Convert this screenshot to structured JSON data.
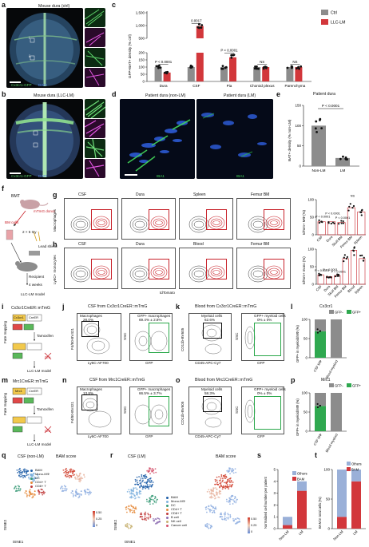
{
  "panels": {
    "a": {
      "letter": "a",
      "title": "Mouse dura (ctrl)",
      "stain_gfp": "Cx3cr1-GFP",
      "stain_dapi": "DAPI",
      "zoom_labels": [
        "i",
        "ii"
      ]
    },
    "b": {
      "letter": "b",
      "title": "Mouse dura (LLC-LM)",
      "stain_gfp": "Cx3cr1-GFP",
      "stain_dapi": "DAPI",
      "zoom_labels": [
        "i",
        "ii"
      ]
    },
    "c": {
      "letter": "c",
      "ylabel": "GFP+BAT+ density (% ctrl)",
      "legend": [
        "Ctrl",
        "LLC-LM"
      ]
    },
    "d": {
      "letter": "d",
      "title_left": "Patient dura (non-LM)",
      "title_right": "Patient dura (LM)",
      "stain_left": "IBA1",
      "stain_right": "IBA1"
    },
    "e": {
      "letter": "e",
      "title": "Patient dura",
      "ylabel": "BAT+ density (% non-LM)",
      "pval": "P < 0.0001"
    },
    "f": {
      "letter": "f",
      "title": "BMT",
      "donor": "mTmG donor",
      "bm": "BM cells",
      "irradiation": "2 × 5 Gy",
      "shield": "Lead shield",
      "recipient": "Recipient",
      "weeks": "4 weeks",
      "model": "LLC-LM model"
    },
    "g": {
      "letter": "g",
      "row_label": "Macrophages",
      "cols": [
        "CSF",
        "Dura",
        "Spleen",
        "Femur BM"
      ],
      "pcts": [
        "37.0% ± 2.8%",
        "36.7% ± 1.7%",
        "64.8% ± 3.3%",
        "76.7% ± 3.2%"
      ],
      "ylabel": "tdTom+ MΦ (%)",
      "pvals": [
        "P < 0.0001",
        "P < 0.0001",
        "P < 0.0001",
        "NS"
      ]
    },
    "h": {
      "letter": "h",
      "row_label": "Ly6C+ monocytes",
      "cols": [
        "CSF",
        "Dura",
        "Blood",
        "Femur BM"
      ],
      "pcts": [
        "27.1% ± 3.3%",
        "22.0% ± 4.7%",
        "96.7% ± 1.7%",
        "72.6% ± 5.2%"
      ],
      "xaxis": "tdTomato",
      "ylabel": "tdTom+ mono (%)",
      "pvals": [
        "P < 0.0001",
        "P < 0.0001",
        "P < 0.0001"
      ]
    },
    "i": {
      "letter": "i",
      "title": "Cx3cr1CreER::mTmG",
      "side": "Fate mapping",
      "gene": "Cx3cr1",
      "cre": "CreER",
      "tamoxifen": "Tamoxifen",
      "model": "LLC-LM model",
      "cre_short": "Cre"
    },
    "j": {
      "letter": "j",
      "title": "CSF from Cx3cr1CreER::mTmG",
      "gate": "Macrophages",
      "gate_pct": "28.0%",
      "gfp_gate": "GFP+ macrophages",
      "gfp_pct": "69.4% ± 2.8%",
      "xaxis_left": "Ly6C-AF700",
      "yaxis_left": "F4/80-BV421",
      "xaxis_right": "GFP",
      "yaxis_right": "SSC"
    },
    "k": {
      "letter": "k",
      "title": "Blood from Cx3cr1CreER::mTmG",
      "gate": "Myeloid cells",
      "gate_pct": "62.6%",
      "gfp_gate": "GFP+ myeloid cells",
      "gfp_pct": "0% ± 0%",
      "xaxis_left": "CD45-APC-Cy7",
      "yaxis_left": "CD11b-BV605",
      "xaxis_right": "GFP",
      "yaxis_right": "SSC"
    },
    "l": {
      "letter": "l",
      "title": "Cx3cr1",
      "legend": [
        "GFP−",
        "GFP+"
      ],
      "ylabel": "GFP+ in myeloid/MΦ (%)",
      "cats": [
        "CSF MΦ",
        "Blood myeloid"
      ]
    },
    "m": {
      "letter": "m",
      "title": "Mrc1CreER::mTmG",
      "side": "Fate mapping",
      "gene": "Mrc1",
      "cre": "CreER",
      "tamoxifen": "Tamoxifen",
      "model": "LLC-LM model",
      "cre_short": "Cre"
    },
    "n": {
      "letter": "n",
      "title": "CSF from Mrc1CreER::mTmG",
      "gate": "Macrophages",
      "gate_pct": "13.8%",
      "gfp_gate": "GFP+ macrophages",
      "gfp_pct": "66.5% ± 3.7%",
      "xaxis_left": "Ly6C-AF700",
      "yaxis_left": "F4/80-BV421",
      "xaxis_right": "GFP",
      "yaxis_right": "SSC"
    },
    "o": {
      "letter": "o",
      "title": "Blood from Mrc1CreER::mTmG",
      "gate": "Myeloid cells",
      "gate_pct": "58.3%",
      "gfp_gate": "GFP+ myeloid cells",
      "gfp_pct": "0% ± 0%",
      "xaxis_left": "CD45-APC-Cy7",
      "yaxis_left": "CD11b-BV605",
      "xaxis_right": "GFP",
      "yaxis_right": "SSC"
    },
    "p": {
      "letter": "p",
      "title": "Mrc1",
      "legend": [
        "GFP−",
        "GFP+"
      ],
      "ylabel": "GFP+ in myeloid/MΦ (%)",
      "cats": [
        "CSF MΦ",
        "Blood myeloid"
      ]
    },
    "q": {
      "letter": "q",
      "title": "CSF (non-LM)",
      "score": "BAM score",
      "legend": [
        "BAM",
        "Mono-MΦ",
        "DC",
        "CD4+ T",
        "CD8+ T"
      ],
      "xaxis": "tSNE1",
      "yaxis": "tSNE2",
      "scale": [
        "0.50",
        "0.25",
        "0"
      ]
    },
    "r": {
      "letter": "r",
      "title": "CSF (LM)",
      "score": "BAM score",
      "legend": [
        "BAM",
        "Mono-MΦ",
        "DC",
        "CD4+ T",
        "CD8+ T",
        "B cell",
        "NK cell",
        "Cancer cell"
      ],
      "xaxis": "tSNE1",
      "yaxis": "tSNE2",
      "scale": [
        "0.50",
        "0.25",
        "0"
      ]
    },
    "s": {
      "letter": "s",
      "ylabel": "Normalized cell number per patient",
      "legend": [
        "Others",
        "BAM"
      ],
      "cats": [
        "Non-LM",
        "LM"
      ]
    },
    "t": {
      "letter": "t",
      "ylabel": "BAM in total cells (%)",
      "legend": [
        "Others",
        "BAM"
      ],
      "cats": [
        "Non-LM",
        "LM"
      ]
    }
  },
  "chart_data": [
    {
      "id": "c",
      "type": "bar",
      "categories": [
        "Dura",
        "CSF",
        "Pia",
        "Choroid plexus",
        "Parenchyma"
      ],
      "series": [
        {
          "name": "Ctrl",
          "values": [
            100,
            100,
            100,
            100,
            100
          ]
        },
        {
          "name": "LLC-LM",
          "values": [
            62,
            980,
            168,
            100,
            100
          ]
        }
      ],
      "pvals": [
        "P < 0.0001",
        "0.0017",
        "P < 0.0001",
        "NS",
        "NS"
      ],
      "yticks": [
        "0",
        "50",
        "100",
        "150",
        "200",
        "500",
        "1,000",
        "1,500"
      ],
      "ylim_low": [
        0,
        200
      ],
      "ylim_high": [
        500,
        1500
      ],
      "broken_axis": true
    },
    {
      "id": "e",
      "type": "bar",
      "categories": [
        "Non-LM",
        "LM"
      ],
      "values": [
        100,
        20
      ],
      "yticks": [
        "0",
        "50",
        "100",
        "150"
      ],
      "ylim": [
        0,
        150
      ]
    },
    {
      "id": "g",
      "type": "bar",
      "categories": [
        "CSF",
        "Dura",
        "Skull BM",
        "Femur BM",
        "Spleen"
      ],
      "values": [
        37,
        37,
        35,
        77,
        65
      ],
      "yticks": [
        "0",
        "50",
        "100"
      ],
      "ylim": [
        0,
        100
      ]
    },
    {
      "id": "h",
      "type": "bar",
      "categories": [
        "CSF",
        "Dura",
        "Skull BM",
        "Femur BM",
        "Blood",
        "Spleen"
      ],
      "values": [
        27,
        22,
        25,
        73,
        97,
        73
      ],
      "yticks": [
        "0",
        "50",
        "100"
      ],
      "ylim": [
        0,
        100
      ]
    },
    {
      "id": "l",
      "type": "bar",
      "stacked": true,
      "categories": [
        "CSF MΦ",
        "Blood myeloid"
      ],
      "series": [
        {
          "name": "GFP−",
          "values": [
            31,
            100
          ]
        },
        {
          "name": "GFP+",
          "values": [
            69,
            0
          ]
        }
      ],
      "yticks": [
        "0",
        "50",
        "100"
      ],
      "ylim": [
        0,
        100
      ]
    },
    {
      "id": "p",
      "type": "bar",
      "stacked": true,
      "categories": [
        "CSF MΦ",
        "Blood myeloid"
      ],
      "series": [
        {
          "name": "GFP−",
          "values": [
            34,
            100
          ]
        },
        {
          "name": "GFP+",
          "values": [
            66,
            0
          ]
        }
      ],
      "yticks": [
        "0",
        "50",
        "100"
      ],
      "ylim": [
        0,
        100
      ]
    },
    {
      "id": "s",
      "type": "bar",
      "stacked": true,
      "categories": [
        "Non-LM",
        "LM"
      ],
      "series": [
        {
          "name": "BAM",
          "values": [
            0.3,
            3.2
          ]
        },
        {
          "name": "Others",
          "values": [
            0.7,
            0.8
          ]
        }
      ],
      "yticks": [
        "0",
        "1",
        "2",
        "3",
        "4",
        "5"
      ],
      "ylim": [
        0,
        5
      ]
    },
    {
      "id": "t",
      "type": "bar",
      "stacked": true,
      "categories": [
        "Non-LM",
        "LM"
      ],
      "series": [
        {
          "name": "BAM",
          "values": [
            20,
            80
          ]
        },
        {
          "name": "Others",
          "values": [
            80,
            20
          ]
        }
      ],
      "yticks": [
        "0",
        "50",
        "100"
      ],
      "ylim": [
        0,
        100
      ]
    }
  ],
  "colors": {
    "ctrl": "#8c8c8c",
    "llc": "#d2373b",
    "gfp": "#2fa84f",
    "red": "#c8222a"
  }
}
